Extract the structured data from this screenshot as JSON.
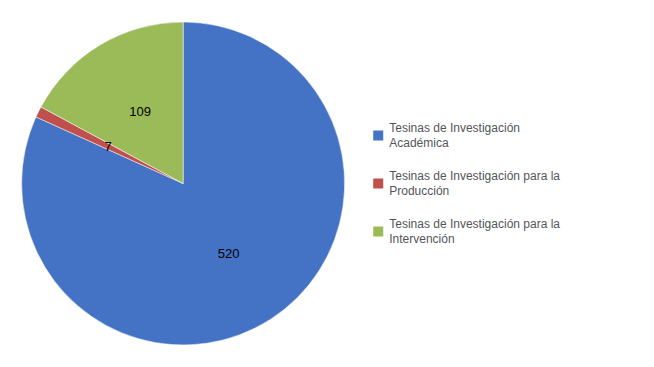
{
  "chart_data": {
    "type": "pie",
    "categories": [
      "Tesinas de Investigación\nAcadémica",
      "Tesinas de Investigación para la\nProducción",
      "Tesinas de Investigación para la\nIntervención"
    ],
    "values": [
      520,
      7,
      109
    ],
    "colors": [
      "#4472C4",
      "#C0504D",
      "#9BBB59"
    ],
    "data_labels": true,
    "legend": "right"
  }
}
